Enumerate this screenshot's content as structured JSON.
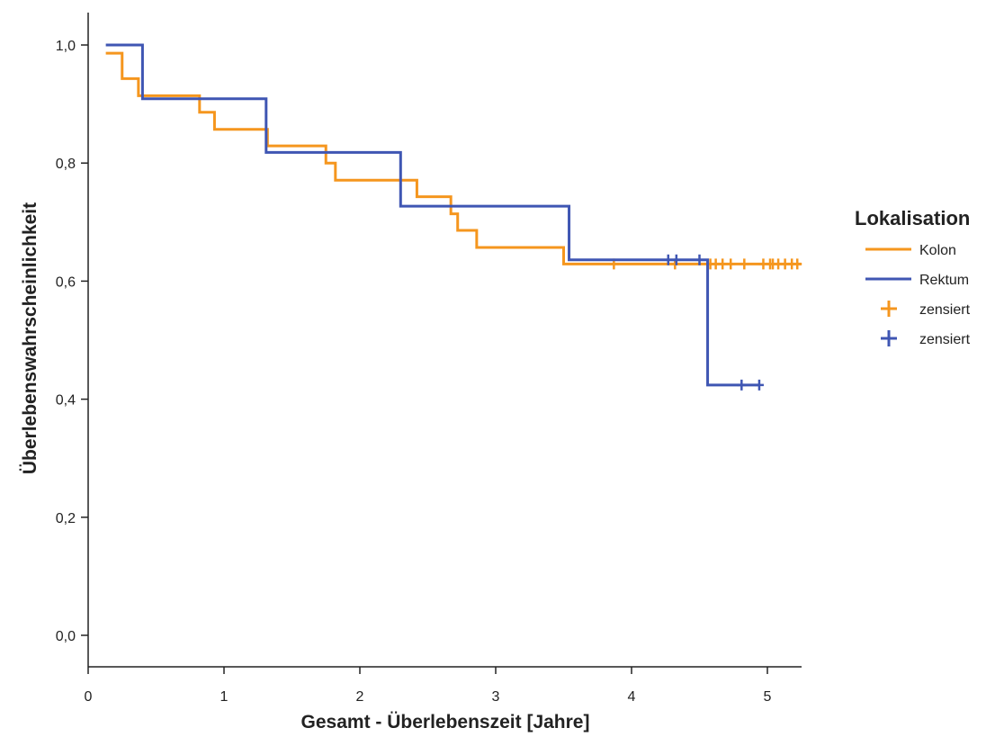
{
  "chart_data": {
    "type": "line",
    "subtype": "kaplan-meier step",
    "xlabel": "Gesamt - Überlebenszeit   [Jahre]",
    "ylabel": "Überlebenswahrscheinlichkeit",
    "xlim": [
      0,
      5.25
    ],
    "ylim": [
      0,
      1.05
    ],
    "x_ticks": [
      0,
      1,
      2,
      3,
      4,
      5
    ],
    "x_tick_labels": [
      "0",
      "1",
      "2",
      "3",
      "4",
      "5"
    ],
    "y_ticks": [
      0,
      0.2,
      0.4,
      0.6,
      0.8,
      1.0
    ],
    "y_tick_labels": [
      "0,0",
      "0,2",
      "0,4",
      "0,6",
      "0,8",
      "1,0"
    ],
    "grid": false,
    "legend": {
      "title": "Lokalisation",
      "position": "right",
      "entries": [
        {
          "label": "Kolon",
          "kind": "line",
          "color": "#f5961e"
        },
        {
          "label": "Rektum",
          "kind": "line",
          "color": "#3f56b3"
        },
        {
          "label": "zensiert",
          "kind": "cross",
          "color": "#f5961e"
        },
        {
          "label": "zensiert",
          "kind": "cross",
          "color": "#3f56b3"
        }
      ]
    },
    "series": [
      {
        "name": "Kolon",
        "color": "#f5961e",
        "steps": [
          [
            0.13,
            0.986
          ],
          [
            0.25,
            0.943
          ],
          [
            0.37,
            0.914
          ],
          [
            0.82,
            0.886
          ],
          [
            0.93,
            0.857
          ],
          [
            1.32,
            0.829
          ],
          [
            1.75,
            0.8
          ],
          [
            1.82,
            0.771
          ],
          [
            2.42,
            0.743
          ],
          [
            2.67,
            0.714
          ],
          [
            2.72,
            0.686
          ],
          [
            2.86,
            0.657
          ],
          [
            3.5,
            0.629
          ]
        ],
        "end_x": 5.25,
        "censored": [
          3.87,
          4.32,
          4.58,
          4.62,
          4.67,
          4.73,
          4.83,
          4.97,
          5.02,
          5.04,
          5.08,
          5.13,
          5.18,
          5.22
        ]
      },
      {
        "name": "Rektum",
        "color": "#3f56b3",
        "steps": [
          [
            0.13,
            1.0
          ],
          [
            0.4,
            0.909
          ],
          [
            1.31,
            0.818
          ],
          [
            2.3,
            0.727
          ],
          [
            3.54,
            0.636
          ],
          [
            4.56,
            0.424
          ]
        ],
        "end_x": 4.94,
        "censored": [
          4.27,
          4.33,
          4.5,
          4.81,
          4.94
        ]
      }
    ]
  }
}
